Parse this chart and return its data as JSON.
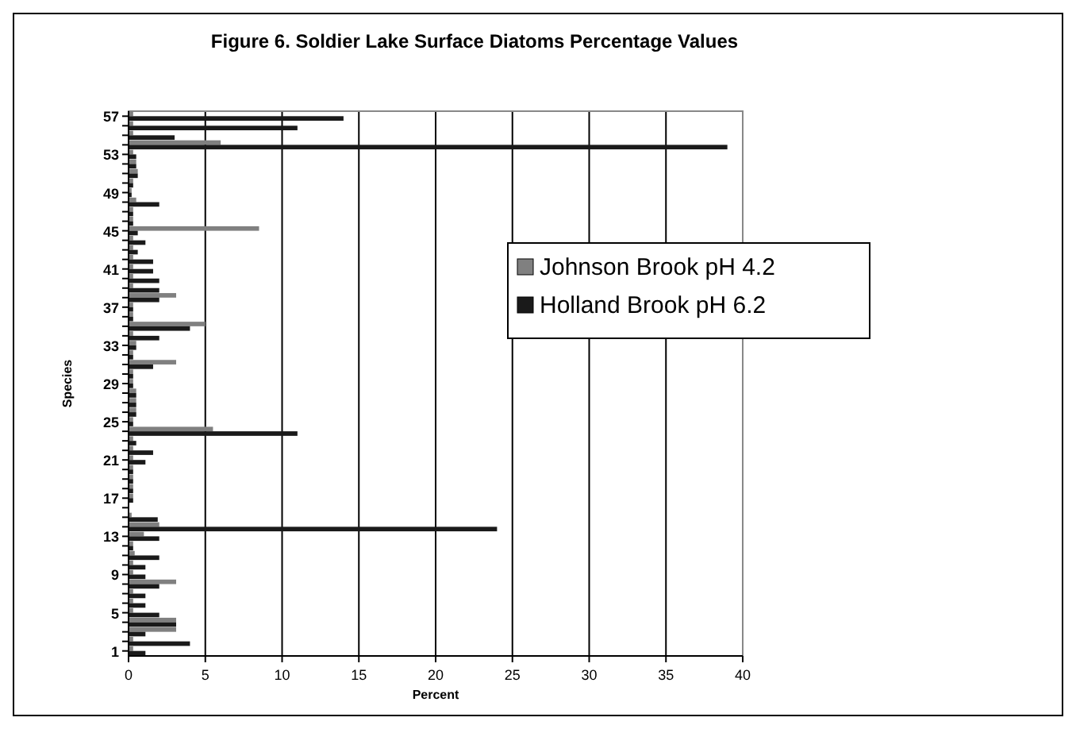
{
  "chart_data": {
    "type": "bar",
    "orientation": "horizontal",
    "title": "Figure 6. Soldier Lake Surface Diatoms Percentage Values",
    "xlabel": "Percent",
    "ylabel": "Species",
    "categories": [
      "57",
      null,
      null,
      null,
      "53",
      null,
      null,
      null,
      "49",
      null,
      null,
      null,
      "45",
      null,
      null,
      null,
      "41",
      null,
      null,
      null,
      "37",
      null,
      null,
      null,
      "33",
      null,
      null,
      null,
      "29",
      null,
      null,
      null,
      "25",
      null,
      null,
      null,
      "21",
      null,
      null,
      null,
      "17",
      null,
      null,
      null,
      "13",
      null,
      null,
      null,
      "9",
      null,
      null,
      null,
      "5",
      null,
      null,
      null,
      "1"
    ],
    "series": [
      {
        "name": "Johnson Brook pH 4.2",
        "color": "#808080",
        "values": [
          0.3,
          0.3,
          0.3,
          6.0,
          0.3,
          0.5,
          0.6,
          0.3,
          0.2,
          0.5,
          0.3,
          0.3,
          8.5,
          0.3,
          0.3,
          0.3,
          0.3,
          0.3,
          0.3,
          3.1,
          0.3,
          0.3,
          5.0,
          0.3,
          0.5,
          0.3,
          3.1,
          0.3,
          0.3,
          0.5,
          0.5,
          0.5,
          0.3,
          5.5,
          0.3,
          0.3,
          0.3,
          0.3,
          0.3,
          0.3,
          0.3,
          null,
          0.2,
          2.0,
          1.0,
          0.3,
          0.4,
          0.3,
          0.3,
          3.1,
          0.3,
          0.3,
          0.3,
          3.1,
          3.1,
          0.3,
          0.3
        ]
      },
      {
        "name": "Holland Brook pH 6.2",
        "color": "#1a1a1a",
        "values": [
          14,
          11,
          3.0,
          39,
          0.5,
          0.5,
          0.6,
          0.3,
          0.2,
          2.0,
          0.3,
          0.3,
          0.6,
          1.1,
          0.6,
          1.6,
          1.6,
          2.0,
          2.0,
          2.0,
          0.3,
          0.3,
          4.0,
          2.0,
          0.5,
          0.3,
          1.6,
          0.3,
          0.3,
          0.5,
          0.5,
          0.5,
          0.3,
          11,
          0.5,
          1.6,
          1.1,
          0.3,
          0.3,
          0.3,
          0.3,
          null,
          1.9,
          24,
          2.0,
          0.3,
          2.0,
          1.1,
          1.1,
          2.0,
          1.1,
          1.1,
          2.0,
          3.1,
          1.1,
          4.0,
          1.1
        ]
      }
    ],
    "xlim": [
      0,
      40
    ],
    "xticks": [
      0,
      5,
      10,
      15,
      20,
      25,
      30,
      35,
      40
    ],
    "grid": "x",
    "legend": "right"
  }
}
